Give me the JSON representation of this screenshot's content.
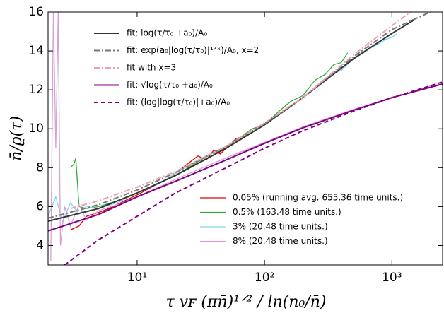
{
  "chart_data": {
    "type": "line",
    "xscale": "log",
    "xlabel": "τ vꜰ (πn̄)¹ᐟ² / ln(n₀/n̄)",
    "ylabel": "n̄/ϱ(τ)",
    "xlim": [
      2,
      2500
    ],
    "ylim": [
      3,
      16
    ],
    "xticks": [
      {
        "value": 10,
        "label": "10¹"
      },
      {
        "value": 100,
        "label": "10²"
      },
      {
        "value": 1000,
        "label": "10³"
      }
    ],
    "yticks": [
      4,
      6,
      8,
      10,
      12,
      14,
      16
    ],
    "series": [
      {
        "name": "fit: log(τ/τ₀ +a₀)/A₀",
        "color": "#333333",
        "linestyle": "solid",
        "width": 2,
        "legend_loc": "upper left",
        "x": [
          2,
          5,
          10,
          20,
          50,
          100,
          200,
          500,
          1000,
          1500
        ],
        "values": [
          5.25,
          5.9,
          6.7,
          7.6,
          9.0,
          10.2,
          11.6,
          13.6,
          14.9,
          15.6
        ]
      },
      {
        "name": "fit: exp(a₀|log(τ/τ₀)|¹ᐟˣ)/A₀, x=2",
        "color": "#777777",
        "linestyle": "dashdot",
        "width": 2,
        "legend_loc": "upper left",
        "x": [
          2,
          5,
          10,
          20,
          50,
          100,
          200,
          500,
          1000,
          2000
        ],
        "values": [
          5.4,
          6.1,
          6.85,
          7.75,
          9.1,
          10.25,
          11.6,
          13.7,
          15.1,
          16
        ]
      },
      {
        "name": "fit with x=3",
        "color": "#f0a0b4",
        "linestyle": "dashdot",
        "width": 2,
        "legend_loc": "upper left",
        "x": [
          3,
          5,
          10,
          20,
          50,
          100,
          200,
          500,
          1000,
          1400
        ],
        "values": [
          5.9,
          6.3,
          7.0,
          7.8,
          9.1,
          10.3,
          11.6,
          13.8,
          15.3,
          16
        ]
      },
      {
        "name": "fit: √log(τ/τ₀ +a₀)/A₀",
        "color": "#800080",
        "linestyle": "solid",
        "width": 2,
        "legend_loc": "upper left",
        "x": [
          2,
          5,
          10,
          20,
          50,
          100,
          200,
          500,
          1000,
          2500
        ],
        "values": [
          4.75,
          5.6,
          6.5,
          7.3,
          8.4,
          9.25,
          10.05,
          10.95,
          11.6,
          12.3
        ]
      },
      {
        "name": "fit: (log|log(τ/τ₀)|+a₀)/A₀",
        "color": "#800080",
        "linestyle": "dashed",
        "width": 2,
        "legend_loc": "upper left",
        "x": [
          2.7,
          5,
          10,
          20,
          50,
          100,
          200,
          500,
          1000,
          2500
        ],
        "values": [
          3,
          4.3,
          5.5,
          6.7,
          8.0,
          9.0,
          9.9,
          10.9,
          11.6,
          12.4
        ]
      },
      {
        "name": "0.05% (running avg. 655.36 time units.)",
        "color": "#e00000",
        "linestyle": "solid",
        "width": 1.3,
        "legend_loc": "lower right",
        "x": [
          3,
          3.5,
          4,
          5,
          6,
          8,
          10,
          13,
          16,
          20,
          25,
          30,
          35,
          40,
          45,
          50,
          60,
          70,
          80
        ],
        "values": [
          4.8,
          5.0,
          5.5,
          5.7,
          5.9,
          6.3,
          6.6,
          7.0,
          7.3,
          7.7,
          8.2,
          8.6,
          8.4,
          8.9,
          8.7,
          9.0,
          9.5,
          9.6,
          9.8
        ]
      },
      {
        "name": "0.5% (163.48 time units.)",
        "color": "#33aa33",
        "linestyle": "solid",
        "width": 1.3,
        "legend_loc": "lower right",
        "x": [
          3,
          3.2,
          3.3,
          3.5,
          4,
          5,
          7,
          10,
          15,
          20,
          30,
          40,
          50,
          60,
          80,
          100,
          130,
          160,
          200,
          250,
          300,
          350,
          400,
          450
        ],
        "values": [
          8.0,
          8.2,
          8.5,
          6.0,
          5.9,
          6.0,
          6.3,
          6.7,
          7.2,
          7.6,
          8.3,
          8.8,
          9.0,
          9.4,
          10.0,
          10.2,
          10.9,
          11.4,
          11.7,
          12.5,
          12.8,
          13.3,
          13.4,
          13.9
        ]
      },
      {
        "name": "3% (20.48 time units.)",
        "color": "#80d8ea",
        "linestyle": "solid",
        "width": 1.3,
        "legend_loc": "lower right",
        "x": [
          2,
          2.3,
          2.6,
          3,
          3.5,
          4,
          5,
          7,
          10,
          15,
          20,
          30,
          50,
          70,
          100,
          150,
          200,
          300,
          400,
          500,
          600,
          700,
          800,
          900,
          1000,
          1100
        ],
        "values": [
          5.5,
          6.5,
          5.2,
          6.2,
          5.6,
          6.0,
          5.9,
          6.2,
          6.7,
          7.2,
          7.7,
          8.4,
          9.1,
          9.6,
          10.2,
          11.0,
          11.6,
          12.6,
          13.0,
          13.6,
          13.9,
          14.2,
          14.4,
          14.6,
          14.7,
          14.9
        ]
      },
      {
        "name": "8% (20.48 time units.)",
        "color": "#d8a0d8",
        "linestyle": "solid",
        "width": 1.3,
        "legend_loc": "lower right",
        "x": [
          2.1,
          2.2,
          2.3,
          2.4,
          2.5,
          2.7,
          3,
          3.5,
          4,
          5,
          7,
          10,
          20,
          50,
          100,
          200,
          500,
          1000,
          1500,
          2000,
          2500
        ],
        "values": [
          3.2,
          16,
          9,
          16,
          4.0,
          6.0,
          5.0,
          6.1,
          5.3,
          5.8,
          6.1,
          6.5,
          7.4,
          8.5,
          9.3,
          10.1,
          11.0,
          11.6,
          11.9,
          12.2,
          12.3
        ]
      }
    ]
  }
}
